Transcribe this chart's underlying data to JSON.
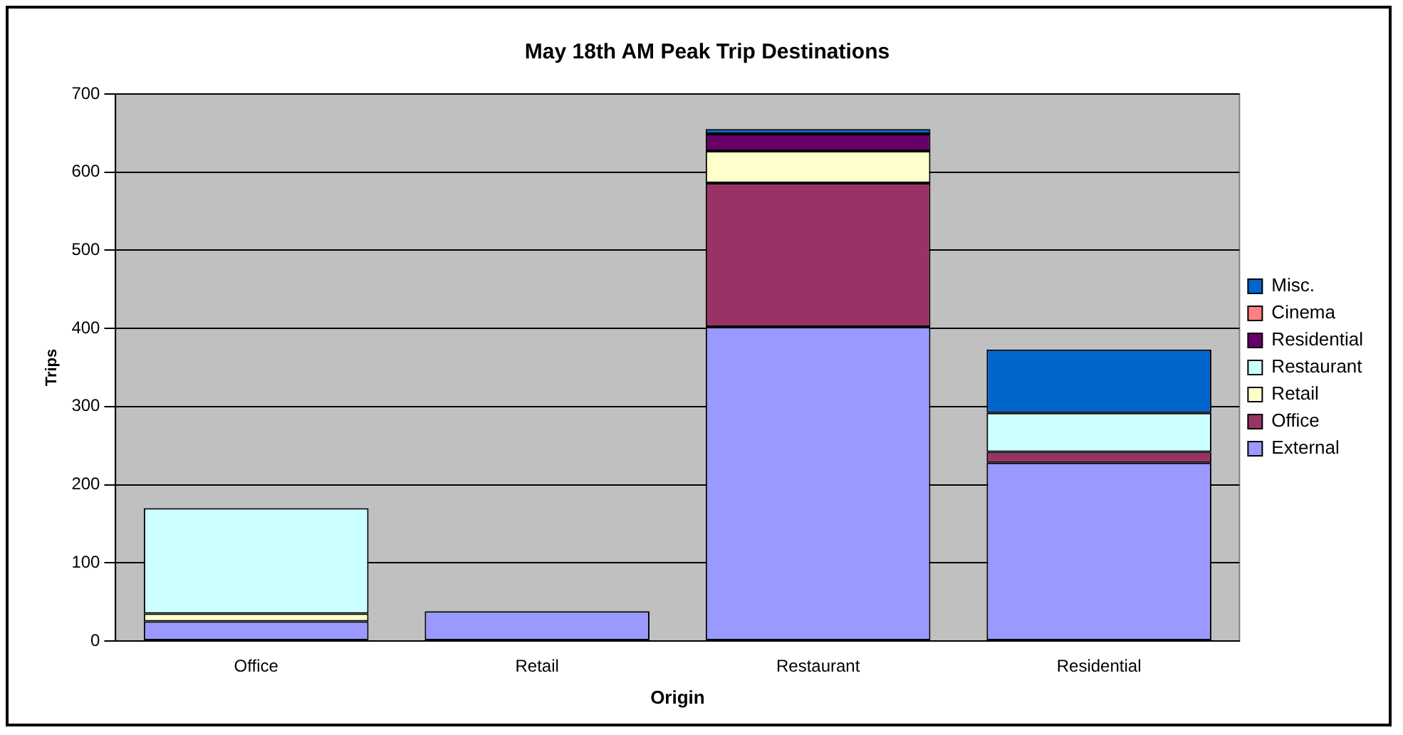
{
  "chart_data": {
    "type": "bar",
    "title": "May 18th AM Peak Trip Destinations",
    "xlabel": "Origin",
    "ylabel": "Trips",
    "stacked": true,
    "legend": "right",
    "grid": "y",
    "categories": [
      "Office",
      "Retail",
      "Restaurant",
      "Residential"
    ],
    "series": [
      {
        "name": "External",
        "color": "#9999ff",
        "values": [
          25,
          38,
          402,
          228
        ]
      },
      {
        "name": "Office",
        "color": "#993366",
        "values": [
          0,
          0,
          184,
          14
        ]
      },
      {
        "name": "Retail",
        "color": "#ffffcc",
        "values": [
          10,
          0,
          41,
          0
        ]
      },
      {
        "name": "Restaurant",
        "color": "#ccffff",
        "values": [
          135,
          0,
          0,
          50
        ]
      },
      {
        "name": "Residential",
        "color": "#660066",
        "values": [
          0,
          0,
          22,
          0
        ]
      },
      {
        "name": "Cinema",
        "color": "#ff8080",
        "values": [
          0,
          0,
          0,
          0
        ]
      },
      {
        "name": "Misc.",
        "color": "#0066cc",
        "values": [
          0,
          0,
          6,
          81
        ]
      }
    ],
    "ylim": [
      0,
      700
    ],
    "yticks": [
      0,
      100,
      200,
      300,
      400,
      500,
      600,
      700
    ]
  }
}
